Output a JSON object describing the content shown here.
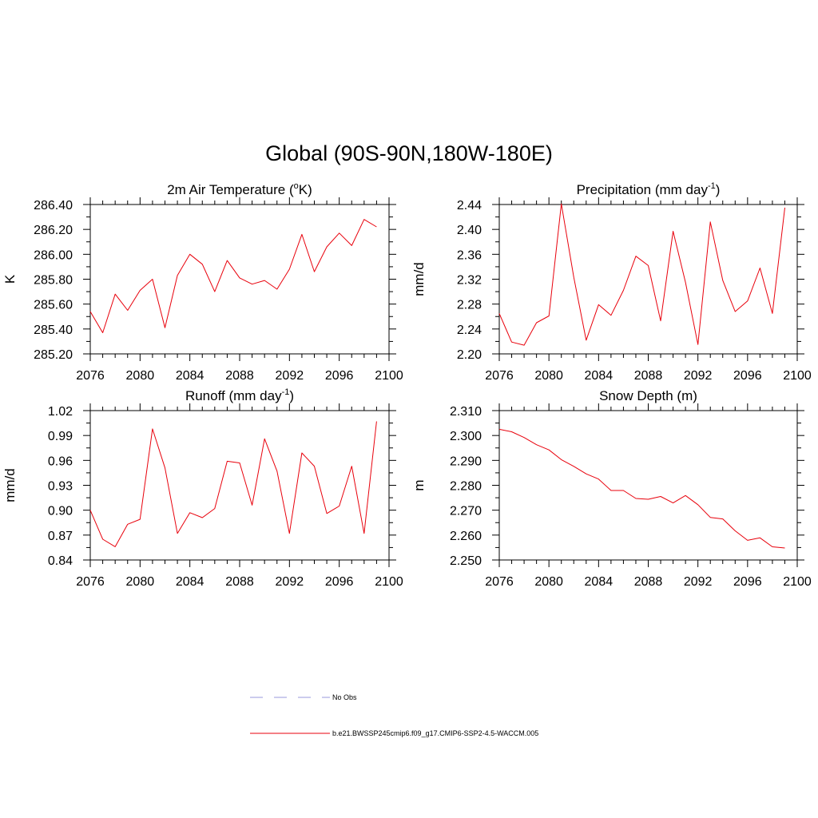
{
  "title": "Global (90S-90N,180W-180E)",
  "colors": {
    "model_line": "#e8000b",
    "obs_line": "#9999dd"
  },
  "chart_data": [
    {
      "type": "line",
      "title": "2m Air Temperature (",
      "title_sup": "o",
      "title_post": "K)",
      "xlabel": "",
      "ylabel": "K",
      "xlim": [
        2076,
        2100
      ],
      "ylim": [
        285.2,
        286.4
      ],
      "x_ticks": [
        2076,
        2080,
        2084,
        2088,
        2092,
        2096,
        2100
      ],
      "y_ticks": [
        "285.20",
        "285.40",
        "285.60",
        "285.80",
        "286.00",
        "286.20",
        "286.40"
      ],
      "x": [
        2076,
        2077,
        2078,
        2079,
        2080,
        2081,
        2082,
        2083,
        2084,
        2085,
        2086,
        2087,
        2088,
        2089,
        2090,
        2091,
        2092,
        2093,
        2094,
        2095,
        2096,
        2097,
        2098,
        2099
      ],
      "series": [
        {
          "values": [
            285.54,
            285.37,
            285.68,
            285.55,
            285.71,
            285.8,
            285.41,
            285.83,
            286.0,
            285.92,
            285.7,
            285.95,
            285.81,
            285.76,
            285.79,
            285.72,
            285.88,
            286.16,
            285.86,
            286.06,
            286.17,
            286.07,
            286.28,
            286.22
          ]
        }
      ]
    },
    {
      "type": "line",
      "title": "Precipitation (mm day",
      "title_sup": "-1",
      "title_post": ")",
      "xlabel": "",
      "ylabel": "mm/d",
      "xlim": [
        2076,
        2100
      ],
      "ylim": [
        2.2,
        2.44
      ],
      "x_ticks": [
        2076,
        2080,
        2084,
        2088,
        2092,
        2096,
        2100
      ],
      "y_ticks": [
        "2.20",
        "2.24",
        "2.28",
        "2.32",
        "2.36",
        "2.40",
        "2.44"
      ],
      "x": [
        2076,
        2077,
        2078,
        2079,
        2080,
        2081,
        2082,
        2083,
        2084,
        2085,
        2086,
        2087,
        2088,
        2089,
        2090,
        2091,
        2092,
        2093,
        2094,
        2095,
        2096,
        2097,
        2098,
        2099
      ],
      "series": [
        {
          "values": [
            2.265,
            2.219,
            2.214,
            2.25,
            2.261,
            2.441,
            2.323,
            2.222,
            2.279,
            2.262,
            2.302,
            2.357,
            2.342,
            2.253,
            2.397,
            2.315,
            2.215,
            2.412,
            2.318,
            2.268,
            2.285,
            2.338,
            2.265,
            2.435
          ]
        }
      ]
    },
    {
      "type": "line",
      "title": "Runoff (mm day",
      "title_sup": "-1",
      "title_post": ")",
      "xlabel": "",
      "ylabel": "mm/d",
      "xlim": [
        2076,
        2100
      ],
      "ylim": [
        0.84,
        1.02
      ],
      "x_ticks": [
        2076,
        2080,
        2084,
        2088,
        2092,
        2096,
        2100
      ],
      "y_ticks": [
        "0.84",
        "0.87",
        "0.90",
        "0.93",
        "0.96",
        "0.99",
        "1.02"
      ],
      "x": [
        2076,
        2077,
        2078,
        2079,
        2080,
        2081,
        2082,
        2083,
        2084,
        2085,
        2086,
        2087,
        2088,
        2089,
        2090,
        2091,
        2092,
        2093,
        2094,
        2095,
        2096,
        2097,
        2098,
        2099
      ],
      "series": [
        {
          "values": [
            0.9,
            0.865,
            0.856,
            0.883,
            0.889,
            0.998,
            0.951,
            0.872,
            0.897,
            0.891,
            0.902,
            0.959,
            0.957,
            0.906,
            0.986,
            0.947,
            0.872,
            0.969,
            0.953,
            0.896,
            0.905,
            0.953,
            0.872,
            1.007
          ]
        }
      ]
    },
    {
      "type": "line",
      "title": "Snow Depth (m)",
      "title_sup": "",
      "title_post": "",
      "xlabel": "",
      "ylabel": "m",
      "xlim": [
        2076,
        2100
      ],
      "ylim": [
        2.25,
        2.31
      ],
      "x_ticks": [
        2076,
        2080,
        2084,
        2088,
        2092,
        2096,
        2100
      ],
      "y_ticks": [
        "2.250",
        "2.260",
        "2.270",
        "2.280",
        "2.290",
        "2.300",
        "2.310"
      ],
      "x": [
        2076,
        2077,
        2078,
        2079,
        2080,
        2081,
        2082,
        2083,
        2084,
        2085,
        2086,
        2087,
        2088,
        2089,
        2090,
        2091,
        2092,
        2093,
        2094,
        2095,
        2096,
        2097,
        2098,
        2099
      ],
      "series": [
        {
          "values": [
            2.3025,
            2.3015,
            2.2992,
            2.2963,
            2.2942,
            2.2903,
            2.2876,
            2.2846,
            2.2825,
            2.2779,
            2.2779,
            2.2747,
            2.2744,
            2.2755,
            2.2729,
            2.2759,
            2.2722,
            2.2671,
            2.2665,
            2.2617,
            2.2579,
            2.2589,
            2.2553,
            2.2548
          ]
        }
      ]
    }
  ],
  "legend": [
    {
      "label": "No Obs",
      "style": "dashed",
      "color": "#9999dd"
    },
    {
      "label": "b.e21.BWSSP245cmip6.f09_g17.CMIP6-SSP2-4.5-WACCM.005",
      "style": "solid",
      "color": "#e8000b"
    }
  ]
}
